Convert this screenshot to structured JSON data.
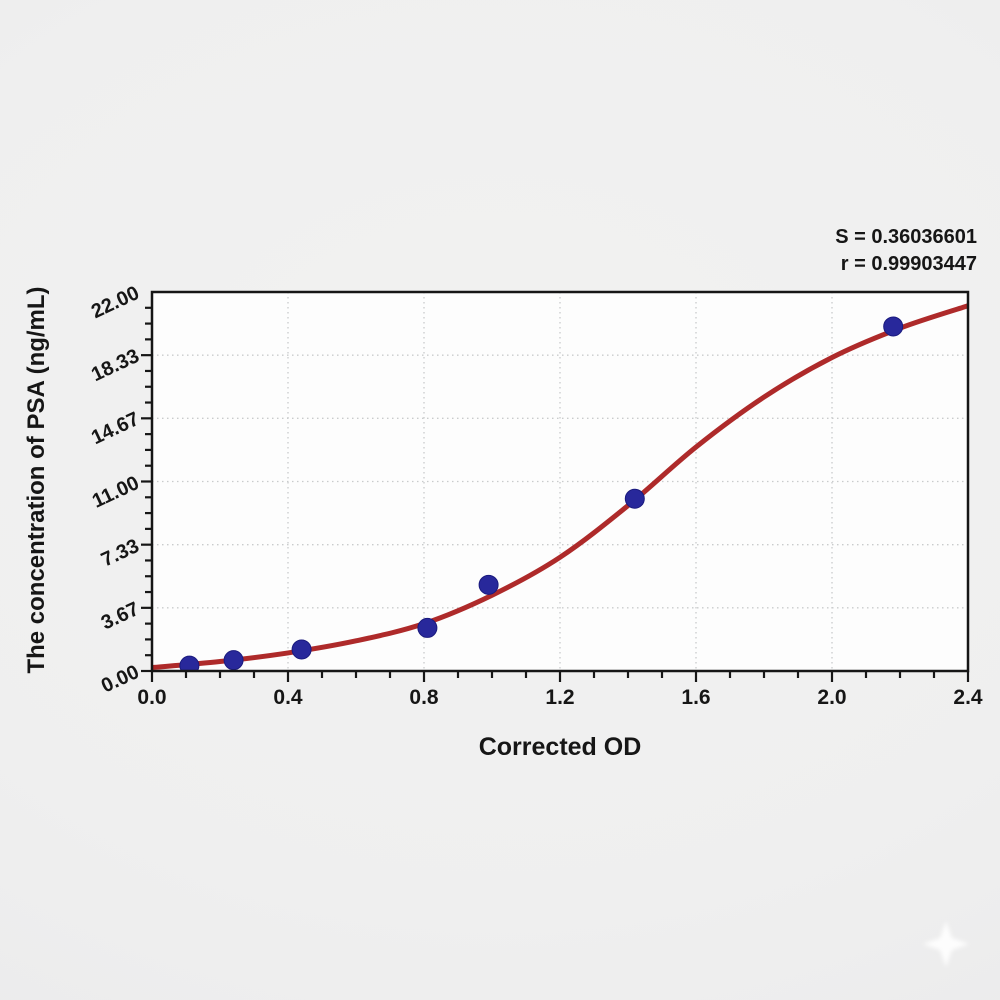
{
  "chart_data": {
    "type": "scatter",
    "xlabel": "Corrected OD",
    "ylabel": "The concentration of PSA (ng/mL)",
    "xlim": [
      0,
      2.4
    ],
    "ylim": [
      0,
      22
    ],
    "x_ticks": {
      "values": [
        0,
        0.4,
        0.8,
        1.2,
        1.6,
        2.0,
        2.4
      ],
      "labels": [
        "0.0",
        "0.4",
        "0.8",
        "1.2",
        "1.6",
        "2.0",
        "2.4"
      ],
      "minor_step": 0.1
    },
    "y_ticks": {
      "values": [
        0,
        3.6667,
        7.3333,
        11,
        14.6667,
        18.3333,
        22
      ],
      "labels": [
        "0.00",
        "3.67",
        "7.33",
        "11.00",
        "14.67",
        "18.33",
        "22.00"
      ],
      "minor_step": 0.91667
    },
    "grid": "dotted, at major ticks",
    "legend_position": "none",
    "annotation": {
      "s_label": "S = 0.36036601",
      "r_label": "r = 0.99903447"
    },
    "series": [
      {
        "name": "standards",
        "points": [
          {
            "x": 0.11,
            "y": 0.31
          },
          {
            "x": 0.24,
            "y": 0.63
          },
          {
            "x": 0.44,
            "y": 1.25
          },
          {
            "x": 0.81,
            "y": 2.5
          },
          {
            "x": 0.99,
            "y": 5.0
          },
          {
            "x": 1.42,
            "y": 10.0
          },
          {
            "x": 2.18,
            "y": 20.0
          }
        ]
      }
    ],
    "fit_curve": {
      "name": "4PL fit",
      "samples": [
        [
          0.0,
          0.2
        ],
        [
          0.2,
          0.55
        ],
        [
          0.4,
          1.05
        ],
        [
          0.6,
          1.75
        ],
        [
          0.8,
          2.75
        ],
        [
          1.0,
          4.4
        ],
        [
          1.2,
          6.6
        ],
        [
          1.4,
          9.6
        ],
        [
          1.6,
          13.0
        ],
        [
          1.8,
          15.9
        ],
        [
          2.0,
          18.2
        ],
        [
          2.2,
          19.9
        ],
        [
          2.4,
          21.2
        ]
      ]
    },
    "colors": {
      "curve": "#ae2a2a",
      "point": "#28289b",
      "point_edge": "#1a1a7e",
      "grid": "#c9cbcc",
      "frame": "#161616",
      "text": "#161616",
      "plot_bg": "#fdfdfd",
      "page_bg": "#efefef"
    }
  },
  "watermark": {
    "icon": "four-point-star-sparkle",
    "color": "#ffffff"
  }
}
